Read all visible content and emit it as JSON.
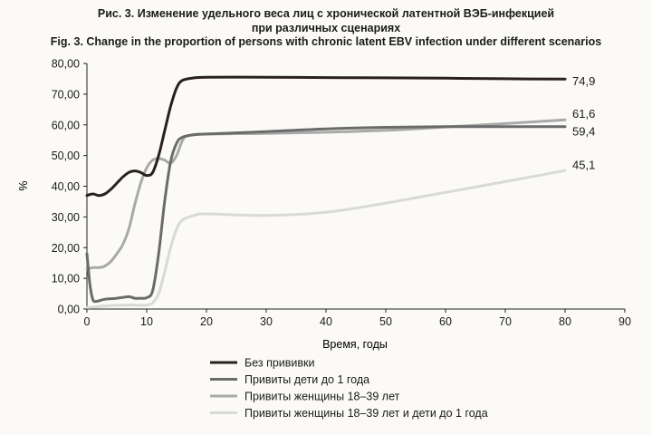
{
  "chart_data": {
    "type": "line",
    "title_ru": "Рис. 3. Изменение удельного веса лиц с хронической латентной ВЭБ-инфекцией",
    "title_ru_2": "при различных сценариях",
    "title_en": "Fig. 3. Change in the proportion of persons with chronic latent EBV infection under different scenarios",
    "xlabel": "Время, годы",
    "ylabel": "%",
    "xlim": [
      0,
      90
    ],
    "ylim": [
      0,
      80
    ],
    "xticks": [
      "0",
      "10",
      "20",
      "30",
      "40",
      "50",
      "60",
      "70",
      "80",
      "90"
    ],
    "yticks": [
      "0,00",
      "10,00",
      "20,00",
      "30,00",
      "40,00",
      "50,00",
      "60,00",
      "70,00",
      "80,00"
    ],
    "grid": false,
    "legend_position": "bottom",
    "series": [
      {
        "name": "Без прививки",
        "color": "#2a211c",
        "end_label": "74,9",
        "points": [
          [
            0,
            37
          ],
          [
            1,
            37.5
          ],
          [
            2,
            37
          ],
          [
            3,
            37.5
          ],
          [
            4,
            39
          ],
          [
            5,
            41
          ],
          [
            6,
            43
          ],
          [
            7,
            44.5
          ],
          [
            8,
            45
          ],
          [
            9,
            44.5
          ],
          [
            10,
            43.5
          ],
          [
            11,
            44.5
          ],
          [
            12,
            50
          ],
          [
            13,
            58
          ],
          [
            14,
            66
          ],
          [
            15,
            72
          ],
          [
            16,
            74.5
          ],
          [
            18,
            75.3
          ],
          [
            20,
            75.5
          ],
          [
            30,
            75.5
          ],
          [
            40,
            75.4
          ],
          [
            50,
            75.3
          ],
          [
            60,
            75.2
          ],
          [
            70,
            75
          ],
          [
            80,
            74.9
          ]
        ]
      },
      {
        "name": "Привиты дети до 1 года",
        "color": "#6b6b6b",
        "end_label": "59,4",
        "points": [
          [
            0,
            18
          ],
          [
            0.5,
            8
          ],
          [
            1,
            3
          ],
          [
            1.5,
            2.5
          ],
          [
            2,
            2.7
          ],
          [
            3,
            3.2
          ],
          [
            5,
            3.5
          ],
          [
            7,
            4
          ],
          [
            8,
            3.5
          ],
          [
            9,
            3.5
          ],
          [
            10,
            3.7
          ],
          [
            11,
            6
          ],
          [
            12,
            18
          ],
          [
            13,
            35
          ],
          [
            14,
            48
          ],
          [
            15,
            54
          ],
          [
            16,
            56
          ],
          [
            18,
            56.8
          ],
          [
            20,
            57
          ],
          [
            30,
            57.8
          ],
          [
            40,
            58.7
          ],
          [
            50,
            59.2
          ],
          [
            60,
            59.4
          ],
          [
            70,
            59.4
          ],
          [
            80,
            59.4
          ]
        ]
      },
      {
        "name": "Привиты женщины 18–39 лет",
        "color": "#a9a9a9",
        "end_label": "61,6",
        "points": [
          [
            0,
            13
          ],
          [
            1,
            13.5
          ],
          [
            2,
            13.5
          ],
          [
            3,
            14
          ],
          [
            4,
            15.5
          ],
          [
            5,
            18
          ],
          [
            6,
            21
          ],
          [
            7,
            26
          ],
          [
            8,
            34
          ],
          [
            9,
            41
          ],
          [
            10,
            46
          ],
          [
            11,
            48.5
          ],
          [
            12,
            49
          ],
          [
            13,
            48.5
          ],
          [
            14,
            47.5
          ],
          [
            15,
            50
          ],
          [
            16,
            55
          ],
          [
            17,
            56.5
          ],
          [
            20,
            57
          ],
          [
            30,
            57.2
          ],
          [
            40,
            57.6
          ],
          [
            50,
            58.2
          ],
          [
            60,
            59.3
          ],
          [
            70,
            60.4
          ],
          [
            80,
            61.6
          ]
        ]
      },
      {
        "name": "Привиты женщины 18–39 лет  и дети до 1 года",
        "color": "#d9d9d9",
        "end_label": "45,1",
        "points": [
          [
            0,
            0.5
          ],
          [
            1,
            0.6
          ],
          [
            2,
            0.8
          ],
          [
            3,
            1
          ],
          [
            5,
            1.2
          ],
          [
            7,
            1.3
          ],
          [
            8,
            1.3
          ],
          [
            9,
            1.2
          ],
          [
            10,
            1.3
          ],
          [
            11,
            2
          ],
          [
            12,
            5
          ],
          [
            13,
            12
          ],
          [
            14,
            20
          ],
          [
            15,
            26
          ],
          [
            16,
            29
          ],
          [
            18,
            30.5
          ],
          [
            20,
            31
          ],
          [
            30,
            30.5
          ],
          [
            40,
            31.5
          ],
          [
            50,
            34.5
          ],
          [
            60,
            38
          ],
          [
            70,
            41.5
          ],
          [
            80,
            45.1
          ]
        ]
      }
    ]
  }
}
